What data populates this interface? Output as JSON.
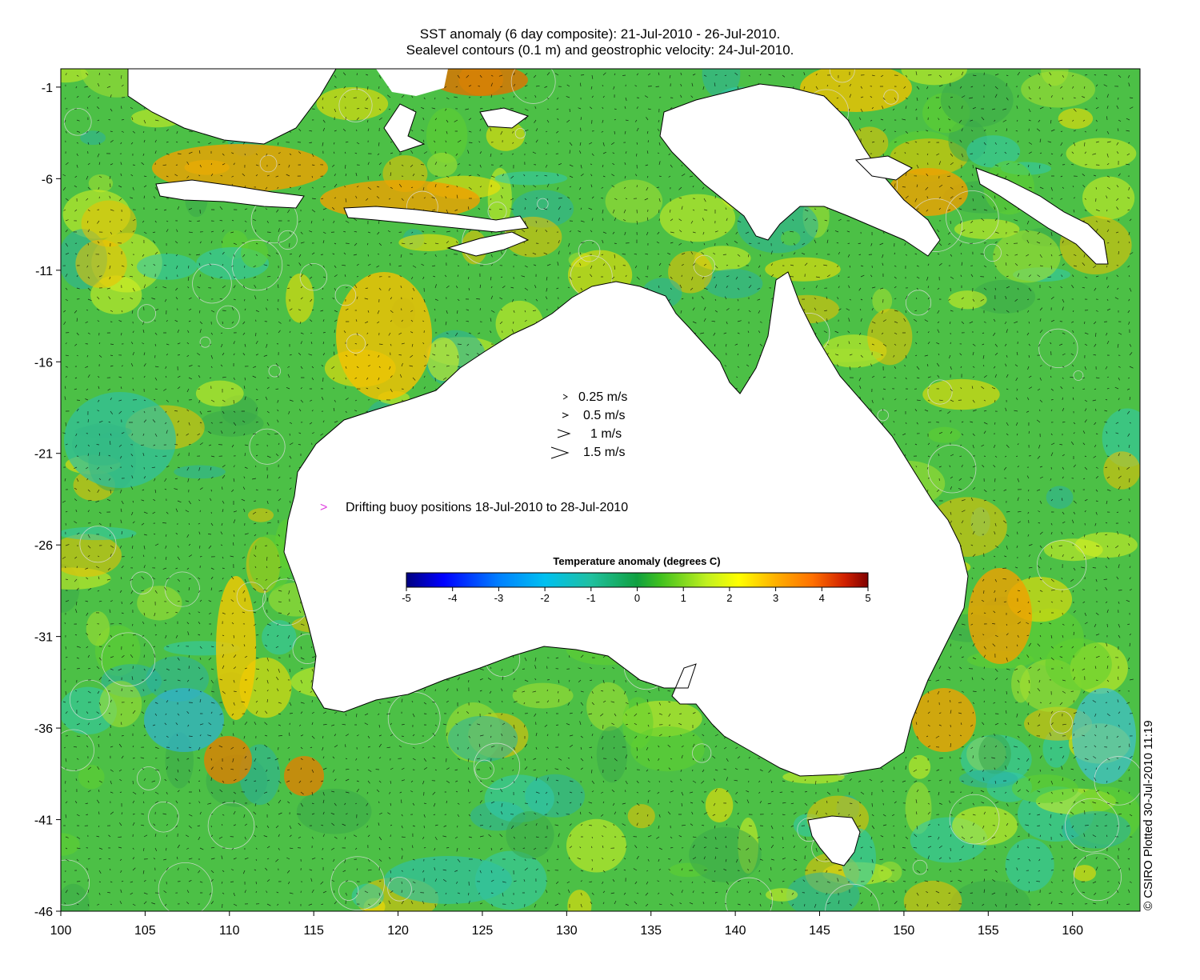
{
  "title": {
    "line1": "SST anomaly (6 day composite): 21-Jul-2010 - 26-Jul-2010.",
    "line2": "Sealevel contours (0.1 m) and geostrophic velocity: 24-Jul-2010."
  },
  "axes": {
    "x_ticks": [
      "100",
      "105",
      "110",
      "115",
      "120",
      "125",
      "130",
      "135",
      "140",
      "145",
      "150",
      "155",
      "160"
    ],
    "y_ticks": [
      "-1",
      "-6",
      "-11",
      "-16",
      "-21",
      "-26",
      "-31",
      "-36",
      "-41",
      "-46"
    ],
    "lon_range": [
      100,
      164
    ],
    "lat_range": [
      -46,
      0
    ]
  },
  "velocity_legend": [
    {
      "label": "0.25 m/s",
      "speed": 0.25
    },
    {
      "label": "0.5 m/s",
      "speed": 0.5
    },
    {
      "label": "1 m/s",
      "speed": 1
    },
    {
      "label": "1.5 m/s",
      "speed": 1.5
    }
  ],
  "buoy_legend": {
    "symbol": ">",
    "label": "Drifting buoy positions 18-Jul-2010 to 28-Jul-2010",
    "color": "#e040e0"
  },
  "colorbar": {
    "title": "Temperature anomaly (degrees C)",
    "ticks": [
      "-5",
      "-4",
      "-3",
      "-2",
      "-1",
      "0",
      "1",
      "2",
      "3",
      "4",
      "5"
    ],
    "range": [
      -5,
      5
    ],
    "colors": [
      "#00007f",
      "#0000ff",
      "#007fff",
      "#00c8ff",
      "#20c8a0",
      "#10a050",
      "#30c020",
      "#90e020",
      "#ffff00",
      "#ffc000",
      "#ff8000",
      "#ff4000",
      "#a00000",
      "#7f0000"
    ]
  },
  "credit": "© CSIRO Plotted 30-Jul-2010 11:19",
  "colors": {
    "ocean_base": "#4fc24a",
    "land": "#ffffff",
    "coast": "#000000",
    "contour": "#d8d8d8",
    "arrow": "#000000"
  }
}
